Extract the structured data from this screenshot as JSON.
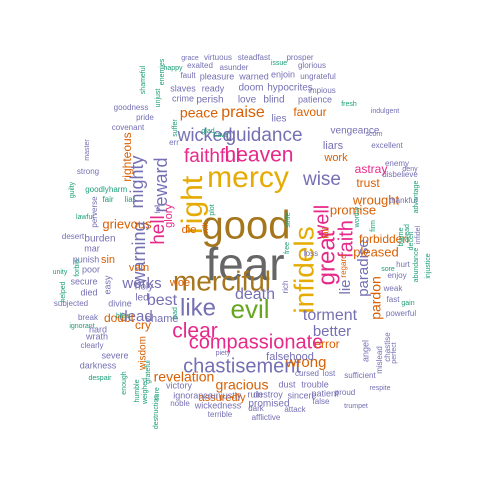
{
  "palette": {
    "gray": "#666666",
    "brown": "#a6761d",
    "pink": "#e7298a",
    "purple": "#7570b3",
    "green": "#66a61e",
    "orange": "#d95f02",
    "gold": "#e6ab02",
    "teal": "#1b9e77"
  },
  "words": [
    {
      "text": "fear",
      "color": "gray"
    },
    {
      "text": "good",
      "color": "brown"
    },
    {
      "text": "merciful",
      "color": "brown"
    },
    {
      "text": "mercy",
      "color": "gold"
    },
    {
      "text": "right",
      "color": "gold"
    },
    {
      "text": "infidels",
      "color": "gold"
    },
    {
      "text": "heaven",
      "color": "pink"
    },
    {
      "text": "faithful",
      "color": "pink"
    },
    {
      "text": "guidance",
      "color": "purple"
    },
    {
      "text": "like",
      "color": "purple"
    },
    {
      "text": "evil",
      "color": "green"
    },
    {
      "text": "clear",
      "color": "pink"
    },
    {
      "text": "compassionate",
      "color": "pink"
    },
    {
      "text": "chastisement",
      "color": "purple"
    },
    {
      "text": "great",
      "color": "pink"
    },
    {
      "text": "wise",
      "color": "purple"
    },
    {
      "text": "well",
      "color": "pink"
    },
    {
      "text": "faith",
      "color": "pink"
    },
    {
      "text": "hell",
      "color": "pink"
    },
    {
      "text": "reward",
      "color": "purple"
    },
    {
      "text": "mighty",
      "color": "purple"
    },
    {
      "text": "warning",
      "color": "purple"
    },
    {
      "text": "wicked",
      "color": "purple"
    },
    {
      "text": "praise",
      "color": "orange"
    },
    {
      "text": "peace",
      "color": "orange"
    },
    {
      "text": "death",
      "color": "purple"
    },
    {
      "text": "torment",
      "color": "purple"
    },
    {
      "text": "best",
      "color": "purple"
    },
    {
      "text": "works",
      "color": "purple"
    },
    {
      "text": "dead",
      "color": "purple"
    },
    {
      "text": "gracious",
      "color": "orange"
    },
    {
      "text": "revelation",
      "color": "orange"
    },
    {
      "text": "better",
      "color": "purple"
    },
    {
      "text": "wrong",
      "color": "orange"
    },
    {
      "text": "paradise",
      "color": "purple"
    },
    {
      "text": "lie",
      "color": "purple"
    },
    {
      "text": "pardon",
      "color": "orange"
    },
    {
      "text": "promise",
      "color": "orange"
    },
    {
      "text": "pleased",
      "color": "orange"
    },
    {
      "text": "wrought",
      "color": "orange"
    },
    {
      "text": "forbidden",
      "color": "orange"
    },
    {
      "text": "trust",
      "color": "orange"
    },
    {
      "text": "astray",
      "color": "pink"
    },
    {
      "text": "work",
      "color": "orange"
    },
    {
      "text": "liars",
      "color": "purple"
    },
    {
      "text": "vengeance",
      "color": "purple"
    },
    {
      "text": "favour",
      "color": "orange"
    },
    {
      "text": "grievous",
      "color": "orange"
    },
    {
      "text": "righteous",
      "color": "orange"
    },
    {
      "text": "doubt",
      "color": "orange"
    },
    {
      "text": "cry",
      "color": "orange"
    },
    {
      "text": "error",
      "color": "orange"
    },
    {
      "text": "assuredly",
      "color": "orange"
    },
    {
      "text": "promised",
      "color": "purple"
    },
    {
      "text": "falsehood",
      "color": "purple"
    },
    {
      "text": "shame",
      "color": "purple"
    },
    {
      "text": "vain",
      "color": "orange"
    },
    {
      "text": "woe",
      "color": "orange"
    },
    {
      "text": "die",
      "color": "orange"
    },
    {
      "text": "glory",
      "color": "pink"
    },
    {
      "text": "sin",
      "color": "orange"
    },
    {
      "text": "holy",
      "color": "purple"
    },
    {
      "text": "led",
      "color": "purple"
    },
    {
      "text": "wisdom",
      "color": "orange"
    },
    {
      "text": "lies",
      "color": "purple"
    },
    {
      "text": "love",
      "color": "purple"
    },
    {
      "text": "blind",
      "color": "purple"
    },
    {
      "text": "doom",
      "color": "purple"
    },
    {
      "text": "perish",
      "color": "purple"
    },
    {
      "text": "crime",
      "color": "purple"
    },
    {
      "text": "slaves",
      "color": "purple"
    },
    {
      "text": "ready",
      "color": "purple"
    },
    {
      "text": "hypocrites",
      "color": "purple"
    },
    {
      "text": "patience",
      "color": "purple"
    },
    {
      "text": "warned",
      "color": "purple"
    },
    {
      "text": "pleasure",
      "color": "purple"
    },
    {
      "text": "enjoin",
      "color": "purple"
    },
    {
      "text": "exalted",
      "color": "purple"
    },
    {
      "text": "asunder",
      "color": "purple"
    },
    {
      "text": "glorious",
      "color": "purple"
    },
    {
      "text": "ungrateful",
      "color": "purple"
    },
    {
      "text": "impious",
      "color": "purple"
    },
    {
      "text": "prosper",
      "color": "purple"
    },
    {
      "text": "virtuous",
      "color": "purple"
    },
    {
      "text": "steadfast",
      "color": "purple"
    },
    {
      "text": "grace",
      "color": "purple"
    },
    {
      "text": "fault",
      "color": "purple"
    },
    {
      "text": "goodness",
      "color": "purple"
    },
    {
      "text": "pride",
      "color": "purple"
    },
    {
      "text": "covenant",
      "color": "purple"
    },
    {
      "text": "master",
      "color": "purple"
    },
    {
      "text": "strong",
      "color": "purple"
    },
    {
      "text": "happy",
      "color": "teal"
    },
    {
      "text": "goodly",
      "color": "teal"
    },
    {
      "text": "harm",
      "color": "teal"
    },
    {
      "text": "liar",
      "color": "teal"
    },
    {
      "text": "guilty",
      "color": "teal"
    },
    {
      "text": "lawful",
      "color": "teal"
    },
    {
      "text": "desert",
      "color": "purple"
    },
    {
      "text": "mar",
      "color": "purple"
    },
    {
      "text": "burden",
      "color": "purple"
    },
    {
      "text": "punish",
      "color": "purple"
    },
    {
      "text": "poor",
      "color": "purple"
    },
    {
      "text": "forbid",
      "color": "teal"
    },
    {
      "text": "unity",
      "color": "teal"
    },
    {
      "text": "helped",
      "color": "teal"
    },
    {
      "text": "secure",
      "color": "purple"
    },
    {
      "text": "died",
      "color": "purple"
    },
    {
      "text": "easy",
      "color": "purple"
    },
    {
      "text": "subjected",
      "color": "purple"
    },
    {
      "text": "divine",
      "color": "purple"
    },
    {
      "text": "break",
      "color": "purple"
    },
    {
      "text": "hard",
      "color": "purple"
    },
    {
      "text": "wrath",
      "color": "purple"
    },
    {
      "text": "clearly",
      "color": "purple"
    },
    {
      "text": "severe",
      "color": "purple"
    },
    {
      "text": "ignorant",
      "color": "teal"
    },
    {
      "text": "darkness",
      "color": "purple"
    },
    {
      "text": "despair",
      "color": "teal"
    },
    {
      "text": "enough",
      "color": "teal"
    },
    {
      "text": "humble",
      "color": "teal"
    },
    {
      "text": "weighed",
      "color": "teal"
    },
    {
      "text": "sure",
      "color": "teal"
    },
    {
      "text": "victory",
      "color": "purple"
    },
    {
      "text": "ignorance",
      "color": "purple"
    },
    {
      "text": "noble",
      "color": "purple"
    },
    {
      "text": "wickedness",
      "color": "purple"
    },
    {
      "text": "terrible",
      "color": "purple"
    },
    {
      "text": "unjustly",
      "color": "purple"
    },
    {
      "text": "ruin",
      "color": "purple"
    },
    {
      "text": "dark",
      "color": "purple"
    },
    {
      "text": "afflictive",
      "color": "purple"
    },
    {
      "text": "destroy",
      "color": "purple"
    },
    {
      "text": "attack",
      "color": "purple"
    },
    {
      "text": "dust",
      "color": "purple"
    },
    {
      "text": "trouble",
      "color": "purple"
    },
    {
      "text": "sincere",
      "color": "purple"
    },
    {
      "text": "false",
      "color": "purple"
    },
    {
      "text": "patient",
      "color": "purple"
    },
    {
      "text": "proud",
      "color": "purple"
    },
    {
      "text": "cursed",
      "color": "purple"
    },
    {
      "text": "lost",
      "color": "purple"
    },
    {
      "text": "sufficient",
      "color": "purple"
    },
    {
      "text": "trumpet",
      "color": "purple"
    },
    {
      "text": "respite",
      "color": "purple"
    },
    {
      "text": "angel",
      "color": "purple"
    },
    {
      "text": "chastise",
      "color": "purple"
    },
    {
      "text": "mislead",
      "color": "purple"
    },
    {
      "text": "perfect",
      "color": "purple"
    },
    {
      "text": "powerful",
      "color": "purple"
    },
    {
      "text": "fast",
      "color": "purple"
    },
    {
      "text": "gain",
      "color": "teal"
    },
    {
      "text": "weak",
      "color": "purple"
    },
    {
      "text": "enjoy",
      "color": "purple"
    },
    {
      "text": "hurt",
      "color": "purple"
    },
    {
      "text": "thankful",
      "color": "purple"
    },
    {
      "text": "disbelieve",
      "color": "purple"
    },
    {
      "text": "enemy",
      "color": "purple"
    },
    {
      "text": "excellent",
      "color": "purple"
    },
    {
      "text": "scorn",
      "color": "purple"
    },
    {
      "text": "indulgent",
      "color": "purple"
    },
    {
      "text": "fresh",
      "color": "teal"
    },
    {
      "text": "deny",
      "color": "purple"
    },
    {
      "text": "advantage",
      "color": "teal"
    },
    {
      "text": "abundance",
      "color": "teal"
    },
    {
      "text": "injustice",
      "color": "teal"
    },
    {
      "text": "blame",
      "color": "teal"
    },
    {
      "text": "dread",
      "color": "teal"
    },
    {
      "text": "deceit",
      "color": "teal"
    },
    {
      "text": "infidel",
      "color": "purple"
    },
    {
      "text": "firm",
      "color": "teal"
    },
    {
      "text": "worthy",
      "color": "teal"
    },
    {
      "text": "strife",
      "color": "teal"
    },
    {
      "text": "free",
      "color": "teal"
    },
    {
      "text": "rich",
      "color": "purple"
    },
    {
      "text": "loss",
      "color": "purple"
    },
    {
      "text": "regard",
      "color": "orange"
    },
    {
      "text": "fail",
      "color": "orange"
    },
    {
      "text": "issue",
      "color": "teal"
    },
    {
      "text": "shameful",
      "color": "teal"
    },
    {
      "text": "unjust",
      "color": "teal"
    },
    {
      "text": "enemies",
      "color": "teal"
    },
    {
      "text": "suffer",
      "color": "teal"
    },
    {
      "text": "glad",
      "color": "teal"
    },
    {
      "text": "wilt",
      "color": "orange"
    },
    {
      "text": "plot",
      "color": "teal"
    },
    {
      "text": "err",
      "color": "purple"
    },
    {
      "text": "cave",
      "color": "teal"
    },
    {
      "text": "bad",
      "color": "teal"
    },
    {
      "text": "piety",
      "color": "purple"
    },
    {
      "text": "fair",
      "color": "teal"
    },
    {
      "text": "perverse",
      "color": "purple"
    },
    {
      "text": "fell",
      "color": "purple"
    },
    {
      "text": "bliss",
      "color": "teal"
    },
    {
      "text": "destruction",
      "color": "teal"
    },
    {
      "text": "grateful",
      "color": "teal"
    },
    {
      "text": "sore",
      "color": "teal"
    }
  ]
}
